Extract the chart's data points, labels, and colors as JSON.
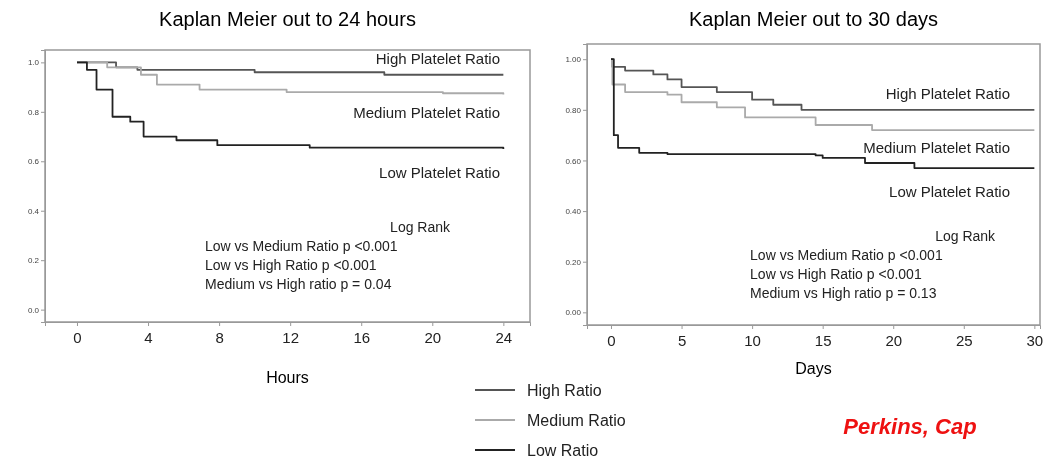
{
  "chart_data": [
    {
      "type": "step",
      "title": "Kaplan Meier out to 24 hours",
      "xlabel": "Hours",
      "xlim": [
        -1.8,
        25.5
      ],
      "ylim": [
        -0.05,
        1.05
      ],
      "xticks": [
        0,
        4,
        8,
        12,
        16,
        20,
        24
      ],
      "yticks": [
        {
          "value": 0,
          "label": "0.0"
        },
        {
          "value": 0.2,
          "label": "0.2"
        },
        {
          "value": 0.4,
          "label": "0.4"
        },
        {
          "value": 0.6,
          "label": "0.6"
        },
        {
          "value": 0.8,
          "label": "0.8"
        },
        {
          "value": 1,
          "label": "1.0"
        }
      ],
      "legend": "bottom",
      "grid": false,
      "series": [
        {
          "name": "High Ratio",
          "color": "#555555",
          "x": [
            0,
            2.2,
            3.4,
            10,
            17.3,
            24
          ],
          "values": [
            1,
            0.98,
            0.97,
            0.96,
            0.95,
            0.95
          ]
        },
        {
          "name": "Medium Ratio",
          "color": "#aaaaaa",
          "x": [
            0,
            1.7,
            3.6,
            4.5,
            6.9,
            11.8,
            20.6,
            24
          ],
          "values": [
            1,
            0.98,
            0.95,
            0.91,
            0.89,
            0.88,
            0.875,
            0.87
          ]
        },
        {
          "name": "Low Ratio",
          "color": "#222222",
          "x": [
            0,
            0.56,
            1.1,
            2,
            3,
            3.75,
            5.6,
            7.9,
            13.1,
            24
          ],
          "values": [
            1,
            0.97,
            0.89,
            0.78,
            0.76,
            0.7,
            0.685,
            0.665,
            0.655,
            0.65
          ]
        }
      ],
      "annotations": [
        "High Platelet Ratio",
        "Medium Platelet Ratio",
        "Low Platelet Ratio",
        "Log Rank",
        "Low vs Medium Ratio p <0.001",
        "Low vs High Ratio p <0.001",
        "Medium vs High ratio p = 0.04"
      ]
    },
    {
      "type": "step",
      "title": "Kaplan Meier out to 30 days",
      "xlabel": "Days",
      "xlim": [
        -1.7,
        30.4
      ],
      "ylim": [
        -0.05,
        1.06
      ],
      "xticks": [
        0,
        5,
        10,
        15,
        20,
        25,
        30
      ],
      "yticks": [
        {
          "value": 0,
          "label": "0.00"
        },
        {
          "value": 0.2,
          "label": "0.20"
        },
        {
          "value": 0.4,
          "label": "0.40"
        },
        {
          "value": 0.6,
          "label": "0.60"
        },
        {
          "value": 0.8,
          "label": "0.80"
        },
        {
          "value": 1,
          "label": "1.00"
        }
      ],
      "grid": false,
      "series": [
        {
          "color": "#555555",
          "x": [
            0,
            0.1,
            1,
            3,
            4,
            5,
            7.5,
            10,
            11.5,
            13.5,
            30
          ],
          "values": [
            1,
            0.97,
            0.955,
            0.94,
            0.92,
            0.89,
            0.87,
            0.84,
            0.82,
            0.8,
            0.8
          ]
        },
        {
          "color": "#aaaaaa",
          "x": [
            0,
            0.1,
            1,
            4,
            5,
            7.5,
            9.5,
            14.5,
            18.5,
            30
          ],
          "values": [
            1,
            0.9,
            0.87,
            0.86,
            0.83,
            0.81,
            0.77,
            0.74,
            0.72,
            0.72
          ]
        },
        {
          "color": "#222222",
          "x": [
            0,
            0.2,
            0.5,
            2,
            4,
            14.5,
            15,
            18,
            21.5,
            30
          ],
          "values": [
            1,
            0.7,
            0.65,
            0.63,
            0.625,
            0.62,
            0.61,
            0.59,
            0.57,
            0.57
          ]
        }
      ],
      "annotations": [
        "High Platelet Ratio",
        "Medium Platelet Ratio",
        "Low Platelet Ratio",
        "Log Rank",
        "Low vs Medium Ratio p <0.001",
        "Low vs High Ratio p <0.001",
        "Medium vs High ratio p = 0.13",
        "Perkins, Cap"
      ]
    }
  ]
}
